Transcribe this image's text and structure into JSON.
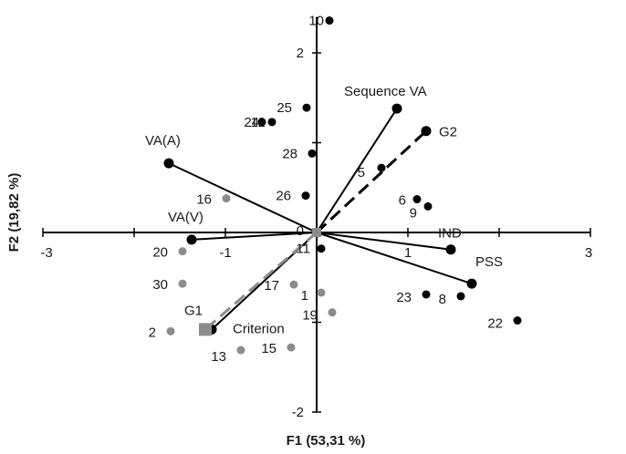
{
  "chart_data": {
    "type": "scatter",
    "subtitle": "",
    "xlabel": "F1 (53,31 %)",
    "ylabel": "F2 (19,82 %)",
    "xlim": [
      -3,
      3
    ],
    "ylim": [
      -2,
      2
    ],
    "x_ticks": [
      {
        "value": -3,
        "label": "-3"
      },
      {
        "value": -1,
        "label": "-1"
      },
      {
        "value": 1,
        "label": "1"
      },
      {
        "value": 3,
        "label": "3"
      }
    ],
    "y_ticks": [
      {
        "value": 2,
        "label": "2"
      },
      {
        "value": 0,
        "label": "0"
      },
      {
        "value": -2,
        "label": "-2"
      }
    ],
    "colors": {
      "active": "#000000",
      "supplementary": "#8c8c8c",
      "axis": "#000000"
    },
    "variables": [
      {
        "name": "Sequence VA",
        "x": 0.88,
        "y": 1.38,
        "style": "solid"
      },
      {
        "name": "G2",
        "x": 1.2,
        "y": 1.13,
        "style": "dashed"
      },
      {
        "name": "VA(A)",
        "x": -1.62,
        "y": 0.77,
        "style": "solid"
      },
      {
        "name": "VA(V)",
        "x": -1.37,
        "y": -0.08,
        "style": "solid"
      },
      {
        "name": "IND",
        "x": 1.47,
        "y": -0.19,
        "style": "solid"
      },
      {
        "name": "PSS",
        "x": 1.7,
        "y": -0.57,
        "style": "solid"
      },
      {
        "name": "G1",
        "x": -1.15,
        "y": -1.08,
        "style": "solid"
      },
      {
        "name": "Criterion",
        "x": -1.22,
        "y": -1.08,
        "style": "dashed",
        "marker": "square",
        "color": "supplementary"
      }
    ],
    "active_points": [
      {
        "label": "10",
        "x": 0.14,
        "y": 2.36
      },
      {
        "label": "25",
        "x": -0.11,
        "y": 1.39
      },
      {
        "label": "24",
        "x": -0.6,
        "y": 1.23
      },
      {
        "label": "12",
        "x": -0.49,
        "y": 1.23
      },
      {
        "label": "28",
        "x": -0.05,
        "y": 0.88
      },
      {
        "label": "5",
        "x": 0.71,
        "y": 0.72
      },
      {
        "label": "26",
        "x": -0.12,
        "y": 0.41
      },
      {
        "label": "6",
        "x": 1.1,
        "y": 0.37
      },
      {
        "label": "9",
        "x": 1.22,
        "y": 0.29
      },
      {
        "label": "11",
        "x": 0.05,
        "y": -0.18
      },
      {
        "label": "23",
        "x": 1.2,
        "y": -0.69
      },
      {
        "label": "8",
        "x": 1.58,
        "y": -0.71
      },
      {
        "label": "22",
        "x": 2.2,
        "y": -0.98
      }
    ],
    "supplementary_points": [
      {
        "label": "16",
        "x": -0.99,
        "y": 0.38
      },
      {
        "label": "20",
        "x": -1.47,
        "y": -0.21
      },
      {
        "label": "30",
        "x": -1.47,
        "y": -0.57
      },
      {
        "label": "2",
        "x": -1.6,
        "y": -1.1
      },
      {
        "label": "17",
        "x": -0.25,
        "y": -0.58
      },
      {
        "label": "1",
        "x": 0.05,
        "y": -0.67
      },
      {
        "label": "19",
        "x": 0.17,
        "y": -0.89
      },
      {
        "label": "13",
        "x": -0.83,
        "y": -1.31
      },
      {
        "label": "15",
        "x": -0.28,
        "y": -1.28
      }
    ],
    "grid": false,
    "legend": "none"
  }
}
